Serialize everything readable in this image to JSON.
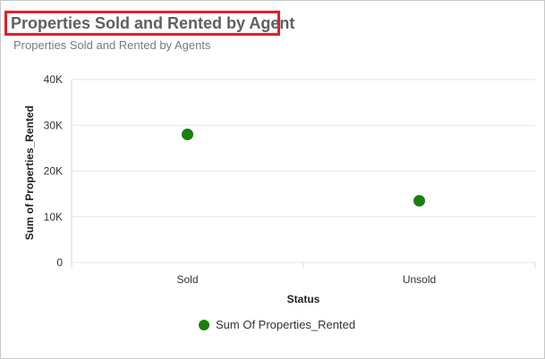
{
  "header": {
    "title": "Properties Sold and Rented by Agent",
    "subtitle": "Properties Sold and Rented by Agents",
    "highlight_color": "#e0202a"
  },
  "chart_data": {
    "type": "scatter",
    "title": "Properties Sold and Rented by Agent",
    "subtitle": "Properties Sold and Rented by Agents",
    "xlabel": "Status",
    "ylabel": "Sum of Properties_Rented",
    "categories": [
      "Sold",
      "Unsold"
    ],
    "series": [
      {
        "name": "Sum Of Properties_Rented",
        "color": "#1a7f0f",
        "values": [
          28000,
          13500
        ]
      }
    ],
    "ylim": [
      0,
      40000
    ],
    "yticks": [
      0,
      10000,
      20000,
      30000,
      40000
    ],
    "ytick_labels": [
      "0",
      "10K",
      "20K",
      "30K",
      "40K"
    ],
    "grid": "y-only",
    "legend_position": "bottom"
  }
}
